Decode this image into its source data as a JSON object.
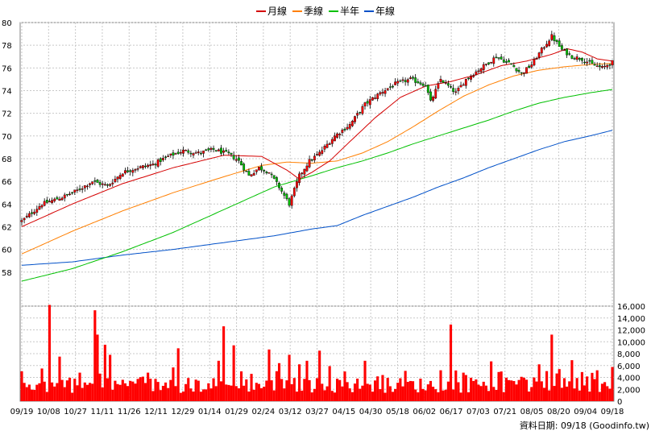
{
  "chart_data": [
    {
      "type": "candlestick",
      "legend": [
        {
          "name": "月線",
          "color": "#d40000"
        },
        {
          "name": "季線",
          "color": "#ff7f00"
        },
        {
          "name": "半年",
          "color": "#00c000"
        },
        {
          "name": "年線",
          "color": "#0050c8"
        }
      ],
      "ylim": [
        55,
        80
      ],
      "yticks": [
        58,
        60,
        62,
        64,
        66,
        68,
        70,
        72,
        74,
        76,
        78,
        80
      ],
      "xticks": [
        "09/19",
        "10/08",
        "10/27",
        "11/11",
        "11/26",
        "12/11",
        "12/29",
        "01/14",
        "01/29",
        "02/24",
        "03/12",
        "03/27",
        "04/15",
        "04/30",
        "05/18",
        "06/02",
        "06/17",
        "07/03",
        "07/21",
        "08/05",
        "08/20",
        "09/04",
        "09/18"
      ],
      "close_anchors": [
        [
          0,
          62.5
        ],
        [
          8,
          64.0
        ],
        [
          16,
          64.6
        ],
        [
          22,
          65.2
        ],
        [
          28,
          66.0
        ],
        [
          34,
          65.6
        ],
        [
          40,
          66.8
        ],
        [
          46,
          67.2
        ],
        [
          52,
          67.5
        ],
        [
          58,
          68.2
        ],
        [
          64,
          68.7
        ],
        [
          70,
          68.5
        ],
        [
          76,
          68.8
        ],
        [
          82,
          68.4
        ],
        [
          86,
          67.8
        ],
        [
          90,
          66.5
        ],
        [
          94,
          67.2
        ],
        [
          98,
          66.8
        ],
        [
          102,
          65.5
        ],
        [
          106,
          64.0
        ],
        [
          110,
          66.5
        ],
        [
          114,
          67.8
        ],
        [
          118,
          68.5
        ],
        [
          124,
          70.0
        ],
        [
          130,
          71.0
        ],
        [
          136,
          72.8
        ],
        [
          142,
          73.8
        ],
        [
          148,
          74.6
        ],
        [
          154,
          75.0
        ],
        [
          160,
          74.5
        ],
        [
          162,
          73.0
        ],
        [
          166,
          75.0
        ],
        [
          172,
          73.8
        ],
        [
          176,
          75.0
        ],
        [
          182,
          76.0
        ],
        [
          188,
          77.0
        ],
        [
          194,
          76.3
        ],
        [
          198,
          75.5
        ],
        [
          202,
          76.3
        ],
        [
          206,
          77.6
        ],
        [
          210,
          78.8
        ],
        [
          214,
          77.6
        ],
        [
          218,
          77.0
        ],
        [
          222,
          76.8
        ],
        [
          226,
          76.3
        ],
        [
          230,
          76.0
        ],
        [
          234,
          76.5
        ]
      ],
      "ma_month_anchors": [
        [
          0,
          62.0
        ],
        [
          20,
          64.0
        ],
        [
          40,
          65.8
        ],
        [
          60,
          67.2
        ],
        [
          80,
          68.3
        ],
        [
          95,
          68.2
        ],
        [
          105,
          67.0
        ],
        [
          110,
          66.2
        ],
        [
          115,
          66.8
        ],
        [
          122,
          67.8
        ],
        [
          130,
          69.5
        ],
        [
          140,
          71.6
        ],
        [
          150,
          73.4
        ],
        [
          160,
          74.4
        ],
        [
          170,
          74.8
        ],
        [
          180,
          75.4
        ],
        [
          190,
          76.2
        ],
        [
          200,
          76.6
        ],
        [
          210,
          77.2
        ],
        [
          216,
          77.7
        ],
        [
          222,
          77.4
        ],
        [
          228,
          76.8
        ],
        [
          234,
          76.6
        ]
      ],
      "ma_quarter_anchors": [
        [
          0,
          59.6
        ],
        [
          20,
          61.6
        ],
        [
          40,
          63.4
        ],
        [
          60,
          65.0
        ],
        [
          80,
          66.4
        ],
        [
          95,
          67.4
        ],
        [
          105,
          67.7
        ],
        [
          115,
          67.6
        ],
        [
          125,
          67.8
        ],
        [
          135,
          68.5
        ],
        [
          145,
          69.5
        ],
        [
          155,
          70.8
        ],
        [
          165,
          72.2
        ],
        [
          175,
          73.5
        ],
        [
          185,
          74.5
        ],
        [
          195,
          75.3
        ],
        [
          205,
          75.8
        ],
        [
          215,
          76.1
        ],
        [
          225,
          76.3
        ],
        [
          234,
          76.4
        ]
      ],
      "ma_half_anchors": [
        [
          0,
          57.2
        ],
        [
          20,
          58.3
        ],
        [
          40,
          59.8
        ],
        [
          60,
          61.5
        ],
        [
          80,
          63.5
        ],
        [
          100,
          65.5
        ],
        [
          115,
          66.5
        ],
        [
          125,
          67.2
        ],
        [
          135,
          67.8
        ],
        [
          145,
          68.5
        ],
        [
          155,
          69.3
        ],
        [
          165,
          70.0
        ],
        [
          175,
          70.7
        ],
        [
          185,
          71.4
        ],
        [
          195,
          72.2
        ],
        [
          205,
          72.9
        ],
        [
          215,
          73.4
        ],
        [
          225,
          73.8
        ],
        [
          234,
          74.1
        ]
      ],
      "ma_year_anchors": [
        [
          0,
          58.6
        ],
        [
          20,
          58.9
        ],
        [
          40,
          59.5
        ],
        [
          60,
          60.0
        ],
        [
          80,
          60.6
        ],
        [
          100,
          61.2
        ],
        [
          115,
          61.8
        ],
        [
          125,
          62.1
        ],
        [
          135,
          63.0
        ],
        [
          145,
          63.8
        ],
        [
          155,
          64.6
        ],
        [
          165,
          65.5
        ],
        [
          175,
          66.3
        ],
        [
          185,
          67.2
        ],
        [
          195,
          68.0
        ],
        [
          205,
          68.8
        ],
        [
          215,
          69.5
        ],
        [
          225,
          70.0
        ],
        [
          234,
          70.5
        ]
      ]
    },
    {
      "type": "bar",
      "ylim": [
        0,
        16000
      ],
      "yticks": [
        0,
        2000,
        4000,
        6000,
        8000,
        10000,
        12000,
        14000,
        16000
      ],
      "ytick_labels": [
        "0",
        "2,000",
        "4,000",
        "6,000",
        "8,000",
        "10,000",
        "12,000",
        "14,000",
        "16,000"
      ],
      "bar_color": "#ff0000",
      "spikes": [
        [
          8,
          5500
        ],
        [
          11,
          16200
        ],
        [
          15,
          7500
        ],
        [
          18,
          3500
        ],
        [
          23,
          4800
        ],
        [
          29,
          15300
        ],
        [
          30,
          11200
        ],
        [
          33,
          9500
        ],
        [
          35,
          7800
        ],
        [
          40,
          3600
        ],
        [
          44,
          3300
        ],
        [
          50,
          4800
        ],
        [
          62,
          8900
        ],
        [
          78,
          6800
        ],
        [
          80,
          12600
        ],
        [
          84,
          9400
        ],
        [
          91,
          4600
        ],
        [
          98,
          8700
        ],
        [
          102,
          6400
        ],
        [
          106,
          7800
        ],
        [
          110,
          6200
        ],
        [
          113,
          6800
        ],
        [
          118,
          8500
        ],
        [
          122,
          5900
        ],
        [
          128,
          5000
        ],
        [
          136,
          6800
        ],
        [
          143,
          4400
        ],
        [
          152,
          5100
        ],
        [
          166,
          5200
        ],
        [
          170,
          12900
        ],
        [
          175,
          4800
        ],
        [
          179,
          3400
        ],
        [
          186,
          6700
        ],
        [
          190,
          5000
        ],
        [
          198,
          4100
        ],
        [
          205,
          6200
        ],
        [
          210,
          11200
        ],
        [
          213,
          5400
        ],
        [
          218,
          6900
        ],
        [
          222,
          4900
        ],
        [
          228,
          5200
        ],
        [
          233,
          2100
        ]
      ]
    }
  ],
  "footer_text": "資料日期: 09/18  (Goodinfo.tw)"
}
